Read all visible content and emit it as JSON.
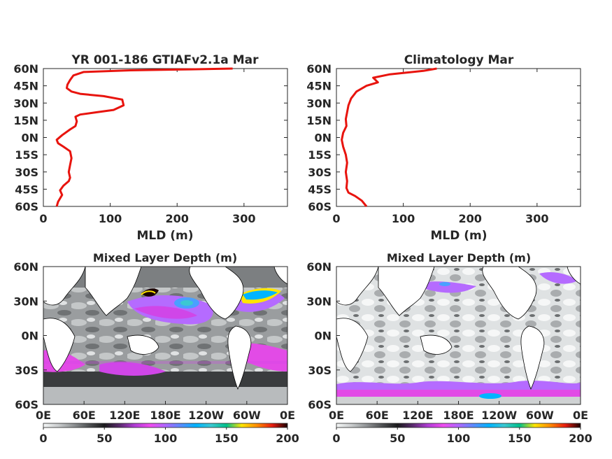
{
  "colors": {
    "line": "#e8140e",
    "axis": "#262626",
    "land": "#ffffff",
    "colormap": [
      "#f4f6f6",
      "#c9cccd",
      "#8f9294",
      "#4f5153",
      "#1a1a1c",
      "#5a2a6e",
      "#b13dd6",
      "#f04cf0",
      "#b066ff",
      "#5a8cff",
      "#00b4ff",
      "#3cc8d2",
      "#00c08a",
      "#ffe600",
      "#ff8c00",
      "#e81c10",
      "#1a0000"
    ]
  },
  "chart_data": [
    {
      "type": "line",
      "title": "YR 001-186 GTIAFv2.1a Mar",
      "xlabel": "MLD (m)",
      "ylabel": "",
      "xlim": [
        0,
        365
      ],
      "ylim": [
        -60,
        60
      ],
      "xticks": [
        "0",
        "100",
        "200",
        "300"
      ],
      "xtick_values": [
        0,
        100,
        200,
        300
      ],
      "yticks": [
        "60N",
        "45N",
        "30N",
        "15N",
        "0N",
        "15S",
        "30S",
        "45S",
        "60S"
      ],
      "ytick_values": [
        60,
        45,
        30,
        15,
        0,
        -15,
        -30,
        -45,
        -60
      ],
      "series": [
        {
          "values": [
            [
              20,
              -60
            ],
            [
              22,
              -56
            ],
            [
              28,
              -50
            ],
            [
              25,
              -46
            ],
            [
              30,
              -42
            ],
            [
              38,
              -38
            ],
            [
              40,
              -35
            ],
            [
              38,
              -30
            ],
            [
              40,
              -24
            ],
            [
              42,
              -18
            ],
            [
              40,
              -12
            ],
            [
              30,
              -8
            ],
            [
              22,
              -5
            ],
            [
              20,
              -2
            ],
            [
              28,
              2
            ],
            [
              40,
              7
            ],
            [
              48,
              10
            ],
            [
              50,
              14
            ],
            [
              48,
              18
            ],
            [
              55,
              20
            ],
            [
              80,
              22
            ],
            [
              105,
              24
            ],
            [
              120,
              28
            ],
            [
              118,
              33
            ],
            [
              90,
              36
            ],
            [
              55,
              38
            ],
            [
              42,
              40
            ],
            [
              35,
              43
            ],
            [
              36,
              46
            ],
            [
              40,
              50
            ],
            [
              45,
              54
            ],
            [
              60,
              57
            ],
            [
              130,
              58.5
            ],
            [
              220,
              59.3
            ],
            [
              283,
              60
            ]
          ]
        }
      ]
    },
    {
      "type": "line",
      "title": "Climatology Mar",
      "xlabel": "MLD (m)",
      "ylabel": "",
      "xlim": [
        0,
        365
      ],
      "ylim": [
        -60,
        60
      ],
      "xticks": [
        "0",
        "100",
        "200",
        "300"
      ],
      "xtick_values": [
        0,
        100,
        200,
        300
      ],
      "yticks": [
        "60N",
        "45N",
        "30N",
        "15N",
        "0N",
        "15S",
        "30S",
        "45S",
        "60S"
      ],
      "ytick_values": [
        60,
        45,
        30,
        15,
        0,
        -15,
        -30,
        -45,
        -60
      ],
      "series": [
        {
          "values": [
            [
              45,
              -60
            ],
            [
              38,
              -55
            ],
            [
              28,
              -51
            ],
            [
              18,
              -48
            ],
            [
              15,
              -44
            ],
            [
              16,
              -38
            ],
            [
              14,
              -30
            ],
            [
              16,
              -22
            ],
            [
              14,
              -15
            ],
            [
              10,
              -8
            ],
            [
              8,
              -2
            ],
            [
              10,
              4
            ],
            [
              15,
              10
            ],
            [
              14,
              16
            ],
            [
              16,
              22
            ],
            [
              18,
              28
            ],
            [
              22,
              34
            ],
            [
              30,
              40
            ],
            [
              45,
              45
            ],
            [
              62,
              48
            ],
            [
              55,
              52
            ],
            [
              80,
              55
            ],
            [
              130,
              58
            ],
            [
              150,
              60
            ]
          ]
        }
      ]
    },
    {
      "type": "heatmap",
      "title": "Mixed Layer Depth (m)",
      "xticks": [
        "0E",
        "60E",
        "120E",
        "180E",
        "120W",
        "60W",
        "0E"
      ],
      "yticks": [
        "60N",
        "30N",
        "0N",
        "30S",
        "60S"
      ],
      "colorbar_ticks": [
        "0",
        "50",
        "100",
        "150",
        "200"
      ],
      "colorbar_range": [
        0,
        200
      ]
    },
    {
      "type": "heatmap",
      "title": "Mixed Layer Depth (m)",
      "xticks": [
        "0E",
        "60E",
        "120E",
        "180E",
        "120W",
        "60W",
        "0E"
      ],
      "yticks": [
        "60N",
        "30N",
        "0N",
        "30S",
        "60S"
      ],
      "colorbar_ticks": [
        "0",
        "50",
        "100",
        "150",
        "200"
      ],
      "colorbar_range": [
        0,
        200
      ]
    }
  ]
}
